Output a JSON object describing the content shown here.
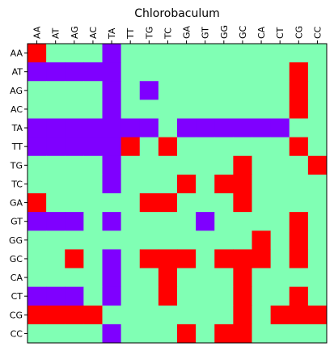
{
  "chart_data": {
    "type": "heatmap",
    "title": "Chlorobaculum",
    "x_labels": [
      "AA",
      "AT",
      "AG",
      "AC",
      "TA",
      "TT",
      "TG",
      "TC",
      "GA",
      "GT",
      "GG",
      "GC",
      "CA",
      "CT",
      "CG",
      "CC"
    ],
    "y_labels": [
      "AA",
      "AT",
      "AG",
      "AC",
      "TA",
      "TT",
      "TG",
      "TC",
      "GA",
      "GT",
      "GG",
      "GC",
      "CA",
      "CT",
      "CG",
      "CC"
    ],
    "x_tick_position": "top",
    "colors": {
      "0": "#7f00ff",
      "1": "#80ffb4",
      "2": "#ff0000"
    },
    "values": [
      [
        2,
        1,
        1,
        1,
        0,
        1,
        1,
        1,
        1,
        1,
        1,
        1,
        1,
        1,
        1,
        1
      ],
      [
        0,
        0,
        0,
        0,
        0,
        1,
        1,
        1,
        1,
        1,
        1,
        1,
        1,
        1,
        2,
        1
      ],
      [
        1,
        1,
        1,
        1,
        0,
        1,
        0,
        1,
        1,
        1,
        1,
        1,
        1,
        1,
        2,
        1
      ],
      [
        1,
        1,
        1,
        1,
        0,
        1,
        1,
        1,
        1,
        1,
        1,
        1,
        1,
        1,
        2,
        1
      ],
      [
        0,
        0,
        0,
        0,
        0,
        0,
        0,
        1,
        0,
        0,
        0,
        0,
        0,
        0,
        1,
        1
      ],
      [
        0,
        0,
        0,
        0,
        0,
        2,
        1,
        2,
        1,
        1,
        1,
        1,
        1,
        1,
        2,
        1
      ],
      [
        1,
        1,
        1,
        1,
        0,
        1,
        1,
        1,
        1,
        1,
        1,
        2,
        1,
        1,
        1,
        2
      ],
      [
        1,
        1,
        1,
        1,
        0,
        1,
        1,
        1,
        2,
        1,
        2,
        2,
        1,
        1,
        1,
        1
      ],
      [
        2,
        1,
        1,
        1,
        1,
        1,
        2,
        2,
        1,
        1,
        1,
        2,
        1,
        1,
        1,
        1
      ],
      [
        0,
        0,
        0,
        1,
        0,
        1,
        1,
        1,
        1,
        0,
        1,
        1,
        1,
        1,
        2,
        1
      ],
      [
        1,
        1,
        1,
        1,
        1,
        1,
        1,
        1,
        1,
        1,
        1,
        1,
        2,
        1,
        2,
        1
      ],
      [
        1,
        1,
        2,
        1,
        0,
        1,
        2,
        2,
        2,
        1,
        2,
        2,
        2,
        1,
        2,
        1
      ],
      [
        1,
        1,
        1,
        1,
        0,
        1,
        1,
        2,
        1,
        1,
        1,
        2,
        1,
        1,
        1,
        1
      ],
      [
        0,
        0,
        0,
        1,
        0,
        1,
        1,
        2,
        1,
        1,
        1,
        2,
        1,
        1,
        2,
        1
      ],
      [
        2,
        2,
        2,
        2,
        1,
        1,
        1,
        1,
        1,
        1,
        1,
        2,
        1,
        2,
        2,
        2
      ],
      [
        1,
        1,
        1,
        1,
        0,
        1,
        1,
        1,
        2,
        1,
        2,
        2,
        1,
        1,
        1,
        1
      ]
    ]
  }
}
